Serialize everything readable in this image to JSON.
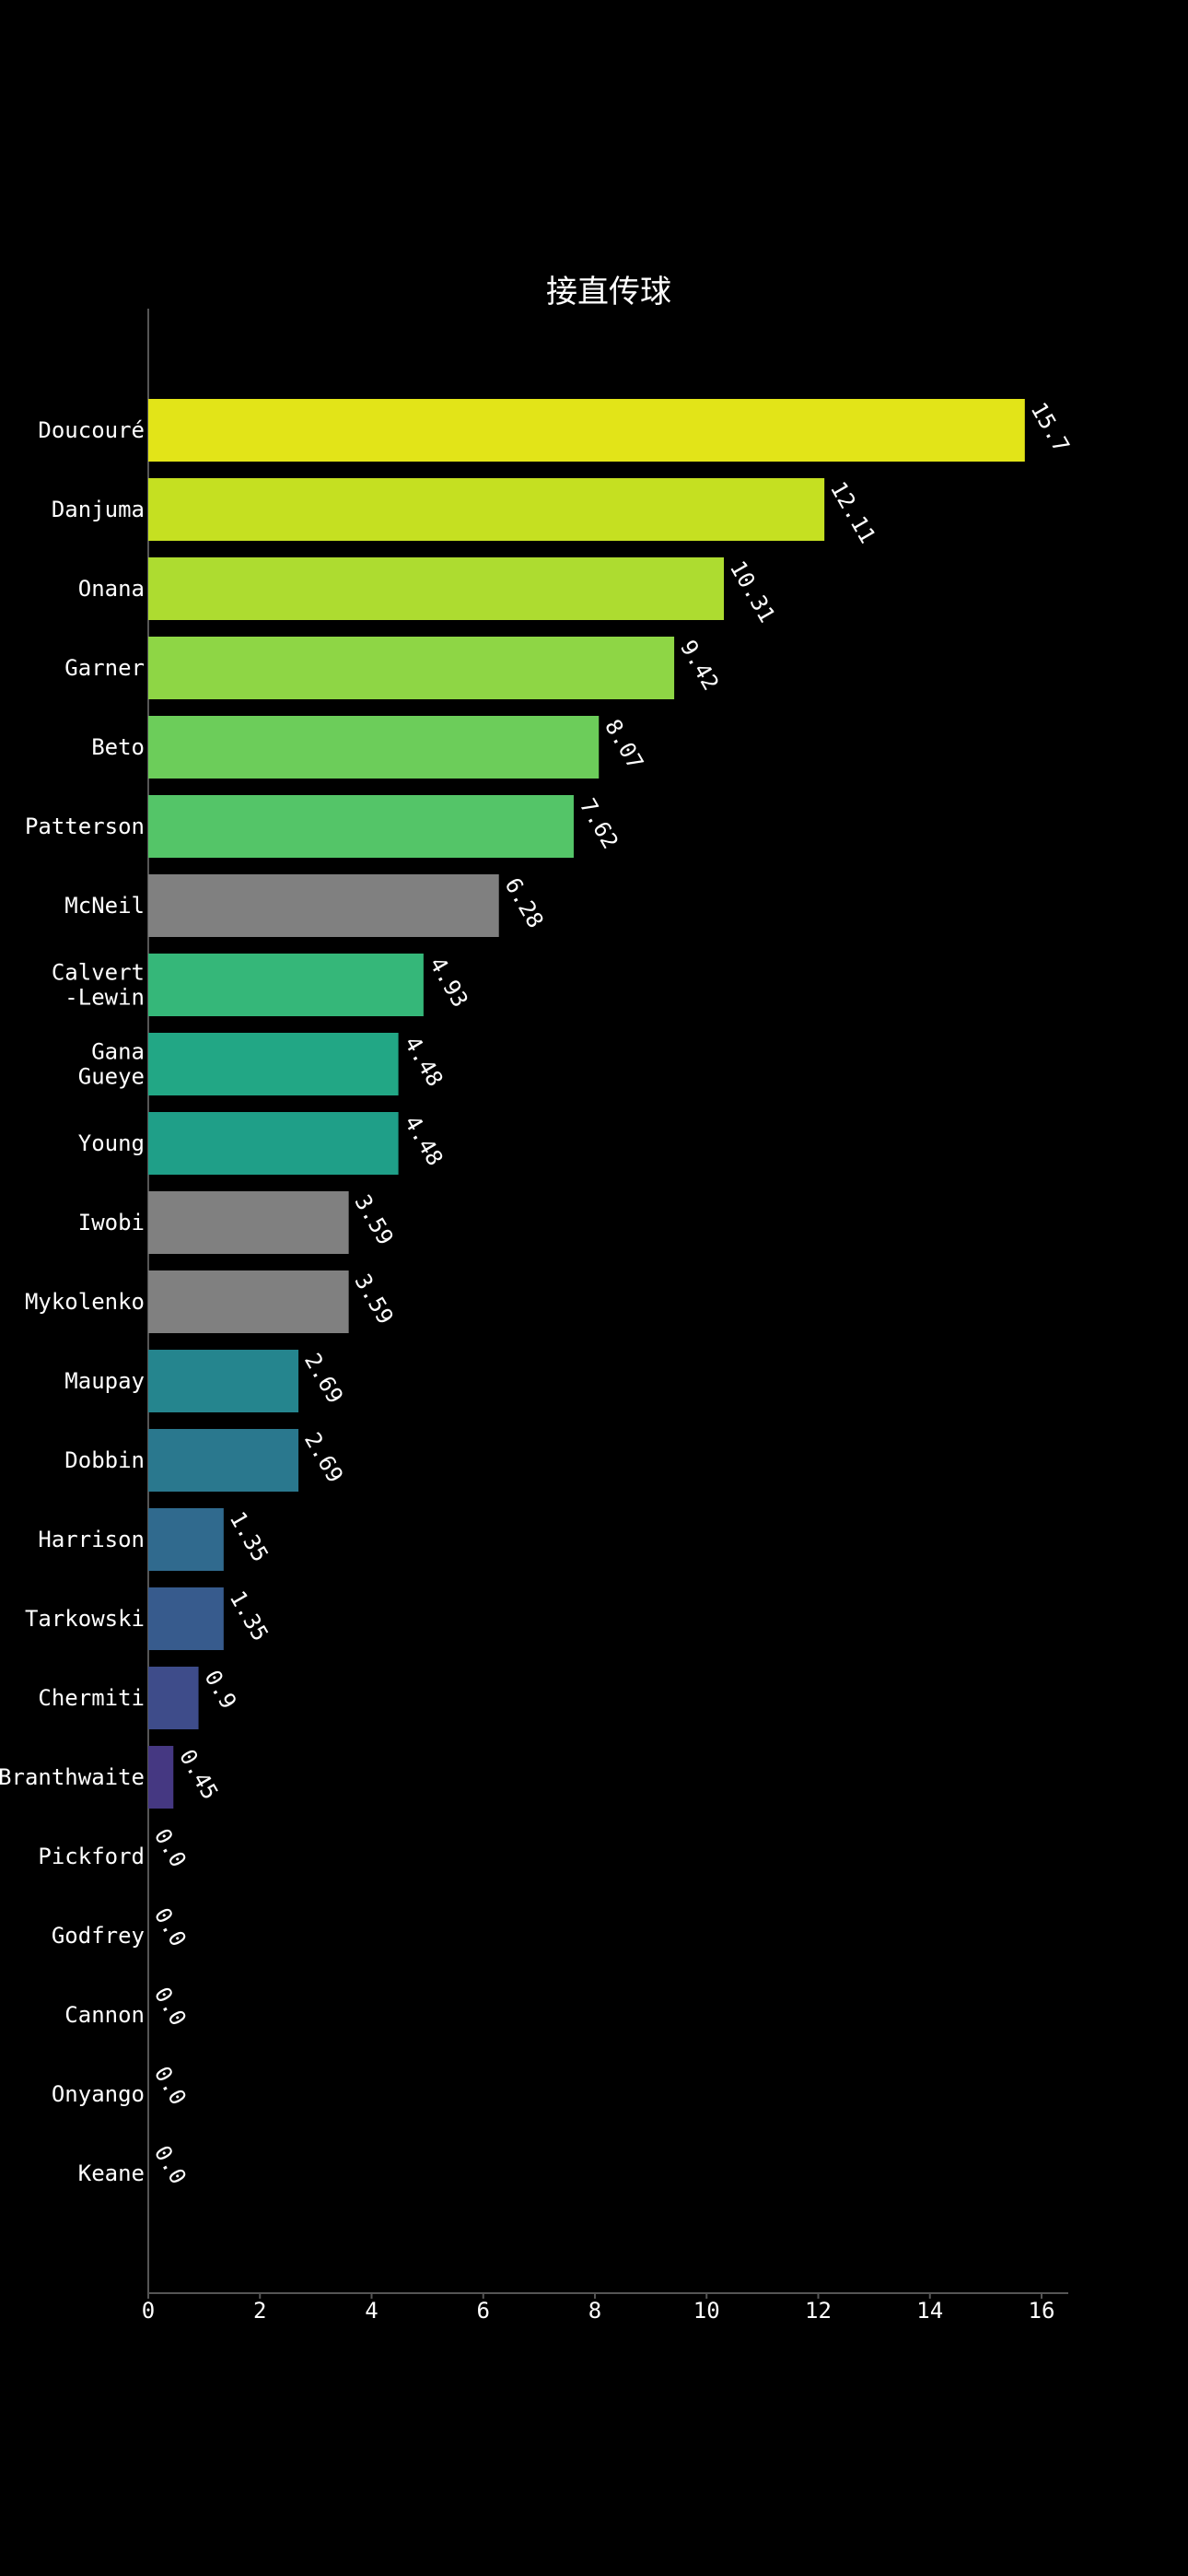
{
  "chart_data": {
    "type": "bar",
    "orientation": "horizontal",
    "title": "接直传球",
    "xlabel": "",
    "ylabel": "",
    "xlim": [
      0,
      16.5
    ],
    "xticks": [
      0,
      2,
      4,
      6,
      8,
      10,
      12,
      14,
      16
    ],
    "grid": false,
    "categories": [
      "Doucouré",
      "Danjuma",
      "Onana",
      "Garner",
      "Beto",
      "Patterson",
      "McNeil",
      "Calvert\n-Lewin",
      "Gana\nGueye",
      "Young",
      "Iwobi",
      "Mykolenko",
      "Maupay",
      "Dobbin",
      "Harrison",
      "Tarkowski",
      "Chermiti",
      "Branthwaite",
      "Pickford",
      "Godfrey",
      "Cannon",
      "Onyango",
      "Keane"
    ],
    "values": [
      15.7,
      12.11,
      10.31,
      9.42,
      8.07,
      7.62,
      6.28,
      4.93,
      4.48,
      4.48,
      3.59,
      3.59,
      2.69,
      2.69,
      1.35,
      1.35,
      0.9,
      0.45,
      0.0,
      0.0,
      0.0,
      0.0,
      0.0
    ],
    "value_labels": [
      "15.7",
      "12.11",
      "10.31",
      "9.42",
      "8.07",
      "7.62",
      "6.28",
      "4.93",
      "4.48",
      "4.48",
      "3.59",
      "3.59",
      "2.69",
      "2.69",
      "1.35",
      "1.35",
      "0.9",
      "0.45",
      "0.0",
      "0.0",
      "0.0",
      "0.0",
      "0.0"
    ],
    "colors": [
      "#e2e418",
      "#c5e021",
      "#addc30",
      "#8ed645",
      "#6ccd5a",
      "#54c568",
      "#808080",
      "#35b779",
      "#22a785",
      "#1f9f88",
      "#808080",
      "#808080",
      "#25858e",
      "#2a788e",
      "#306a8e",
      "#375b8d",
      "#3e4c8a",
      "#453882",
      "#482173",
      "#481467",
      "#46075a",
      "#440154",
      "#440154"
    ],
    "background_color": "#000000",
    "text_color": "#ffffff"
  }
}
